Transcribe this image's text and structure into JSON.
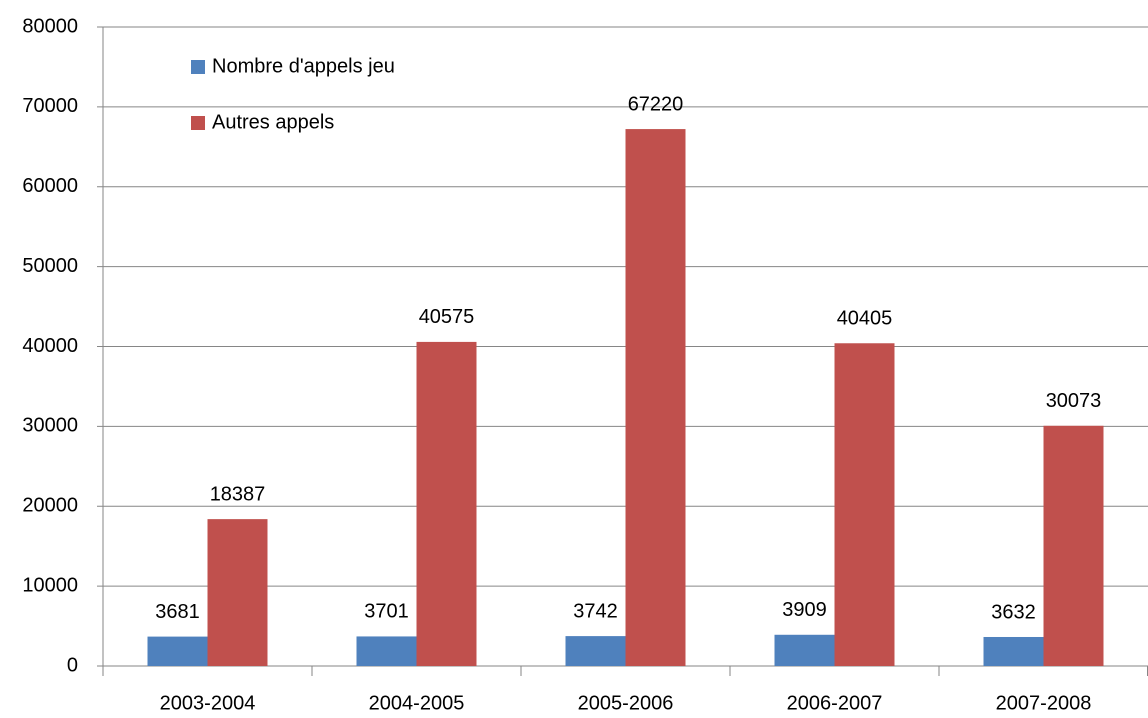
{
  "chart_data": {
    "type": "bar",
    "categories": [
      "2003-2004",
      "2004-2005",
      "2005-2006",
      "2006-2007",
      "2007-2008"
    ],
    "series": [
      {
        "name": "Nombre d'appels jeu",
        "color": "#4f81bd",
        "values": [
          3681,
          3701,
          3742,
          3909,
          3632
        ]
      },
      {
        "name": "Autres appels",
        "color": "#c0504d",
        "values": [
          18387,
          40575,
          67220,
          40405,
          30073
        ]
      }
    ],
    "ylim": [
      0,
      80000
    ],
    "yticks": [
      0,
      10000,
      20000,
      30000,
      40000,
      50000,
      60000,
      70000,
      80000
    ],
    "grid": true,
    "legend": "top-left"
  }
}
